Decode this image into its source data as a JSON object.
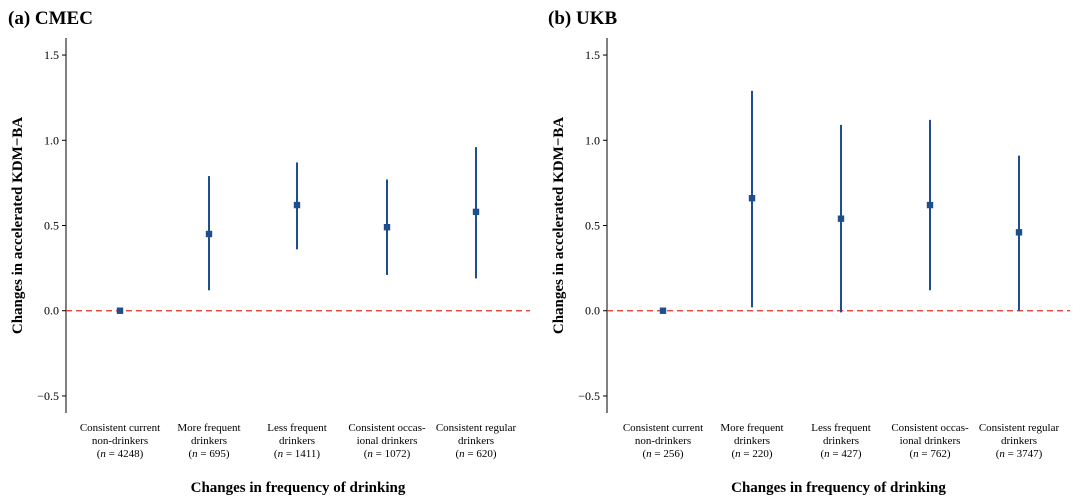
{
  "colors": {
    "point": "#1f4e8c",
    "reference_line": "#e0302a",
    "axis": "#000000",
    "text": "#000000"
  },
  "chart_data": [
    {
      "type": "scatter",
      "panel_label": "(a) CMEC",
      "xlabel": "Changes in frequency of drinking",
      "ylabel": "Changes in accelerated KDM−BA",
      "ylim": [
        -0.6,
        1.6
      ],
      "yticks": [
        -0.5,
        0.0,
        0.5,
        1.0,
        1.5
      ],
      "ytick_labels": [
        "−0.5",
        "0.0",
        "0.5",
        "1.0",
        "1.5"
      ],
      "reference_line": 0.0,
      "grid": false,
      "categories": [
        {
          "lines": [
            "Consistent current",
            "non-drinkers"
          ],
          "n": "4248"
        },
        {
          "lines": [
            "More frequent",
            "drinkers"
          ],
          "n": "695"
        },
        {
          "lines": [
            "Less frequent",
            "drinkers"
          ],
          "n": "1411"
        },
        {
          "lines": [
            "Consistent occas-",
            "ional drinkers"
          ],
          "n": "1072"
        },
        {
          "lines": [
            "Consistent regular",
            "drinkers"
          ],
          "n": "620"
        }
      ],
      "estimates": [
        0.0,
        0.45,
        0.62,
        0.49,
        0.58
      ],
      "ci_lower": [
        0.0,
        0.12,
        0.36,
        0.21,
        0.19
      ],
      "ci_upper": [
        0.0,
        0.79,
        0.87,
        0.77,
        0.96
      ]
    },
    {
      "type": "scatter",
      "panel_label": "(b) UKB",
      "xlabel": "Changes in frequency of drinking",
      "ylabel": "Changes in accelerated KDM−BA",
      "ylim": [
        -0.6,
        1.6
      ],
      "yticks": [
        -0.5,
        0.0,
        0.5,
        1.0,
        1.5
      ],
      "ytick_labels": [
        "−0.5",
        "0.0",
        "0.5",
        "1.0",
        "1.5"
      ],
      "reference_line": 0.0,
      "grid": false,
      "categories": [
        {
          "lines": [
            "Consistent current",
            "non-drinkers"
          ],
          "n": "256"
        },
        {
          "lines": [
            "More frequent",
            "drinkers"
          ],
          "n": "220"
        },
        {
          "lines": [
            "Less frequent",
            "drinkers"
          ],
          "n": "427"
        },
        {
          "lines": [
            "Consistent occas-",
            "ional drinkers"
          ],
          "n": "762"
        },
        {
          "lines": [
            "Consistent regular",
            "drinkers"
          ],
          "n": "3747"
        }
      ],
      "estimates": [
        0.0,
        0.66,
        0.54,
        0.62,
        0.46
      ],
      "ci_lower": [
        0.0,
        0.02,
        -0.01,
        0.12,
        0.0
      ],
      "ci_upper": [
        0.0,
        1.29,
        1.09,
        1.12,
        0.91
      ]
    }
  ]
}
